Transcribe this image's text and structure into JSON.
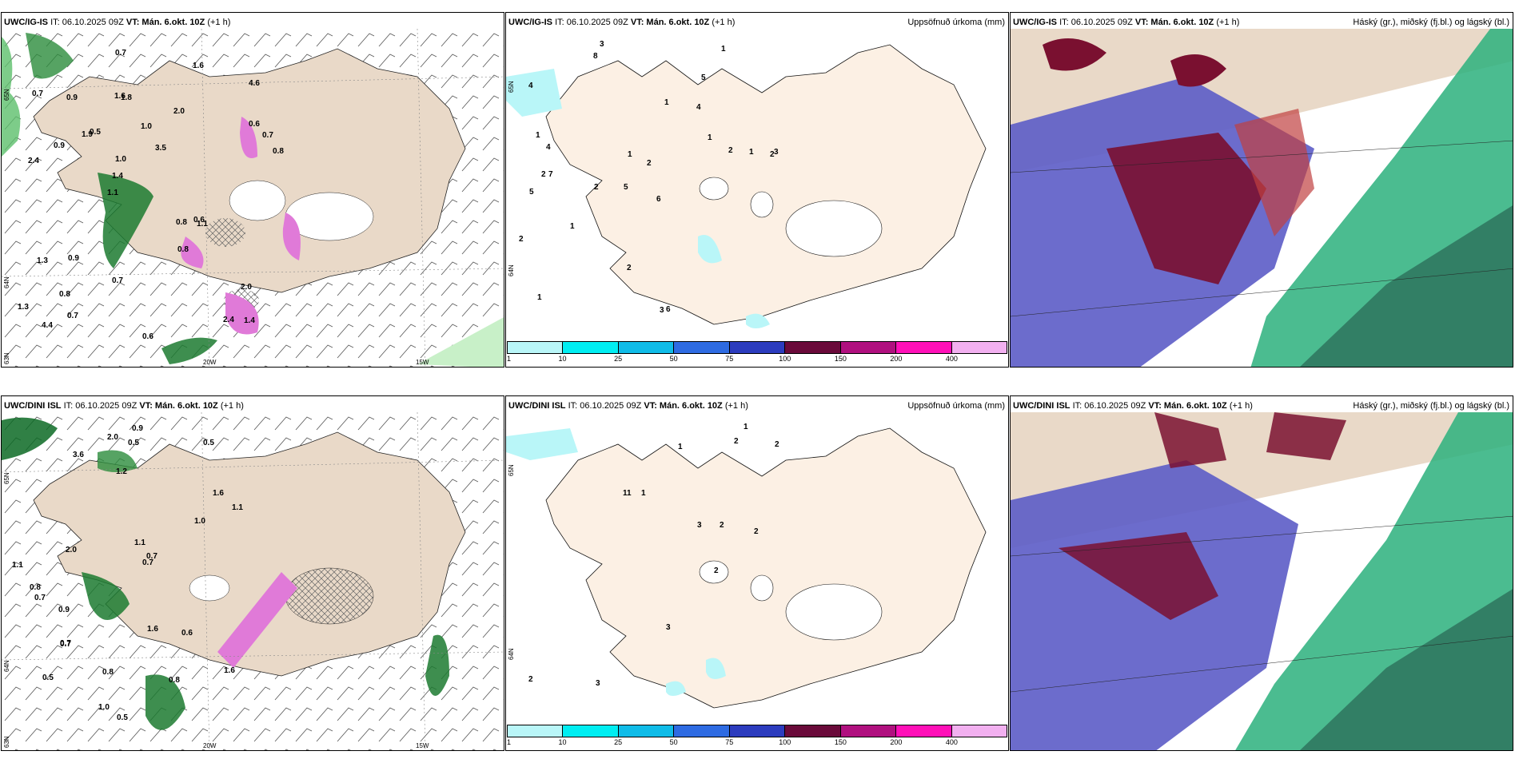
{
  "rows": [
    {
      "model": "UWC/IG-IS",
      "it_label": "IT: 06.10.2025 09Z",
      "vt_label": "VT: Mán. 6.okt. 10Z",
      "lead": "(+1 h)",
      "wind_panel": {
        "axis": {
          "lat_top": "65N",
          "lat_mid": "64N",
          "lat_bottom": "63N",
          "lon_left": "20W",
          "lon_right": "15W"
        },
        "labels": [
          "1.4",
          "2.4",
          "4.6",
          "1.1",
          "2.0",
          "4.4",
          "1.6",
          "1.0",
          "1.3",
          "0.5",
          "1.3",
          "0.8",
          "1.8",
          "3.5",
          "1.1",
          "0.7",
          "0.7",
          "0.8",
          "0.8",
          "0.6",
          "1.4",
          "0.7",
          "1.0",
          "0.9",
          "1.6",
          "0.9",
          "2.4",
          "2.0",
          "0.6",
          "0.6",
          "1.9",
          "0.9",
          "0.8",
          "0.7",
          "0.7"
        ]
      },
      "precip_panel": {
        "title": "Uppsöfnuð úrkoma (mm)",
        "labels": [
          "3",
          "5",
          "2",
          "5",
          "6",
          "7",
          "4",
          "4",
          "5",
          "1",
          "2",
          "1",
          "8",
          "2",
          "3",
          "6",
          "2",
          "1",
          "1",
          "1",
          "4",
          "2",
          "3",
          "1",
          "2",
          "1",
          "1",
          "2"
        ]
      },
      "cloud_panel": {
        "title": "Háský (gr.), miðský (fj.bl.) og lágský (bl.)"
      }
    },
    {
      "model": "UWC/DINI ISL",
      "it_label": "IT: 06.10.2025 09Z",
      "vt_label": "VT: Mán. 6.okt. 10Z",
      "lead": "(+1 h)",
      "wind_panel": {
        "axis": {
          "lat_top": "65N",
          "lat_mid": "64N",
          "lat_bottom": "63N",
          "lon_left": "20W",
          "lon_right": "15W"
        },
        "labels": [
          "0.5",
          "0.5",
          "3.6",
          "1.6",
          "1.6",
          "2.0",
          "0.9",
          "0.7",
          "1.1",
          "1.0",
          "0.8",
          "0.9",
          "0.6",
          "0.7",
          "0.5",
          "2.0",
          "1.6",
          "1.1",
          "0.7",
          "1.0",
          "0.8",
          "0.5",
          "1.2",
          "0.7",
          "1.1",
          "0.8",
          "0.7"
        ]
      },
      "precip_panel": {
        "title": "Uppsöfnuð úrkoma (mm)",
        "labels": [
          "1",
          "2",
          "11",
          "2",
          "2",
          "2",
          "3",
          "2",
          "2",
          "1",
          "3",
          "3",
          "1"
        ]
      },
      "cloud_panel": {
        "title": "Háský (gr.), miðský (fj.bl.) og lágský (bl.)"
      }
    }
  ],
  "colorbar": {
    "ticks": [
      "1",
      "10",
      "25",
      "50",
      "75",
      "100",
      "150",
      "200",
      "400"
    ],
    "colors": [
      "#b9f6f8",
      "#00eef2",
      "#10bce8",
      "#2e6be2",
      "#2c3cbe",
      "#6a0a3a",
      "#b0107f",
      "#ff10b8",
      "#f2b0f0"
    ]
  },
  "colors": {
    "land": "#e9d9c8",
    "land_light": "#fcf0e4",
    "wind_green_dark": "#0c6a24",
    "wind_green_light": "#c8f0c8",
    "pink": "#e07ad8",
    "cloud_blue": "#5c5cc6",
    "cloud_maroon": "#7a1030",
    "cloud_green": "#2cb07c",
    "cloud_teal": "#307860"
  }
}
